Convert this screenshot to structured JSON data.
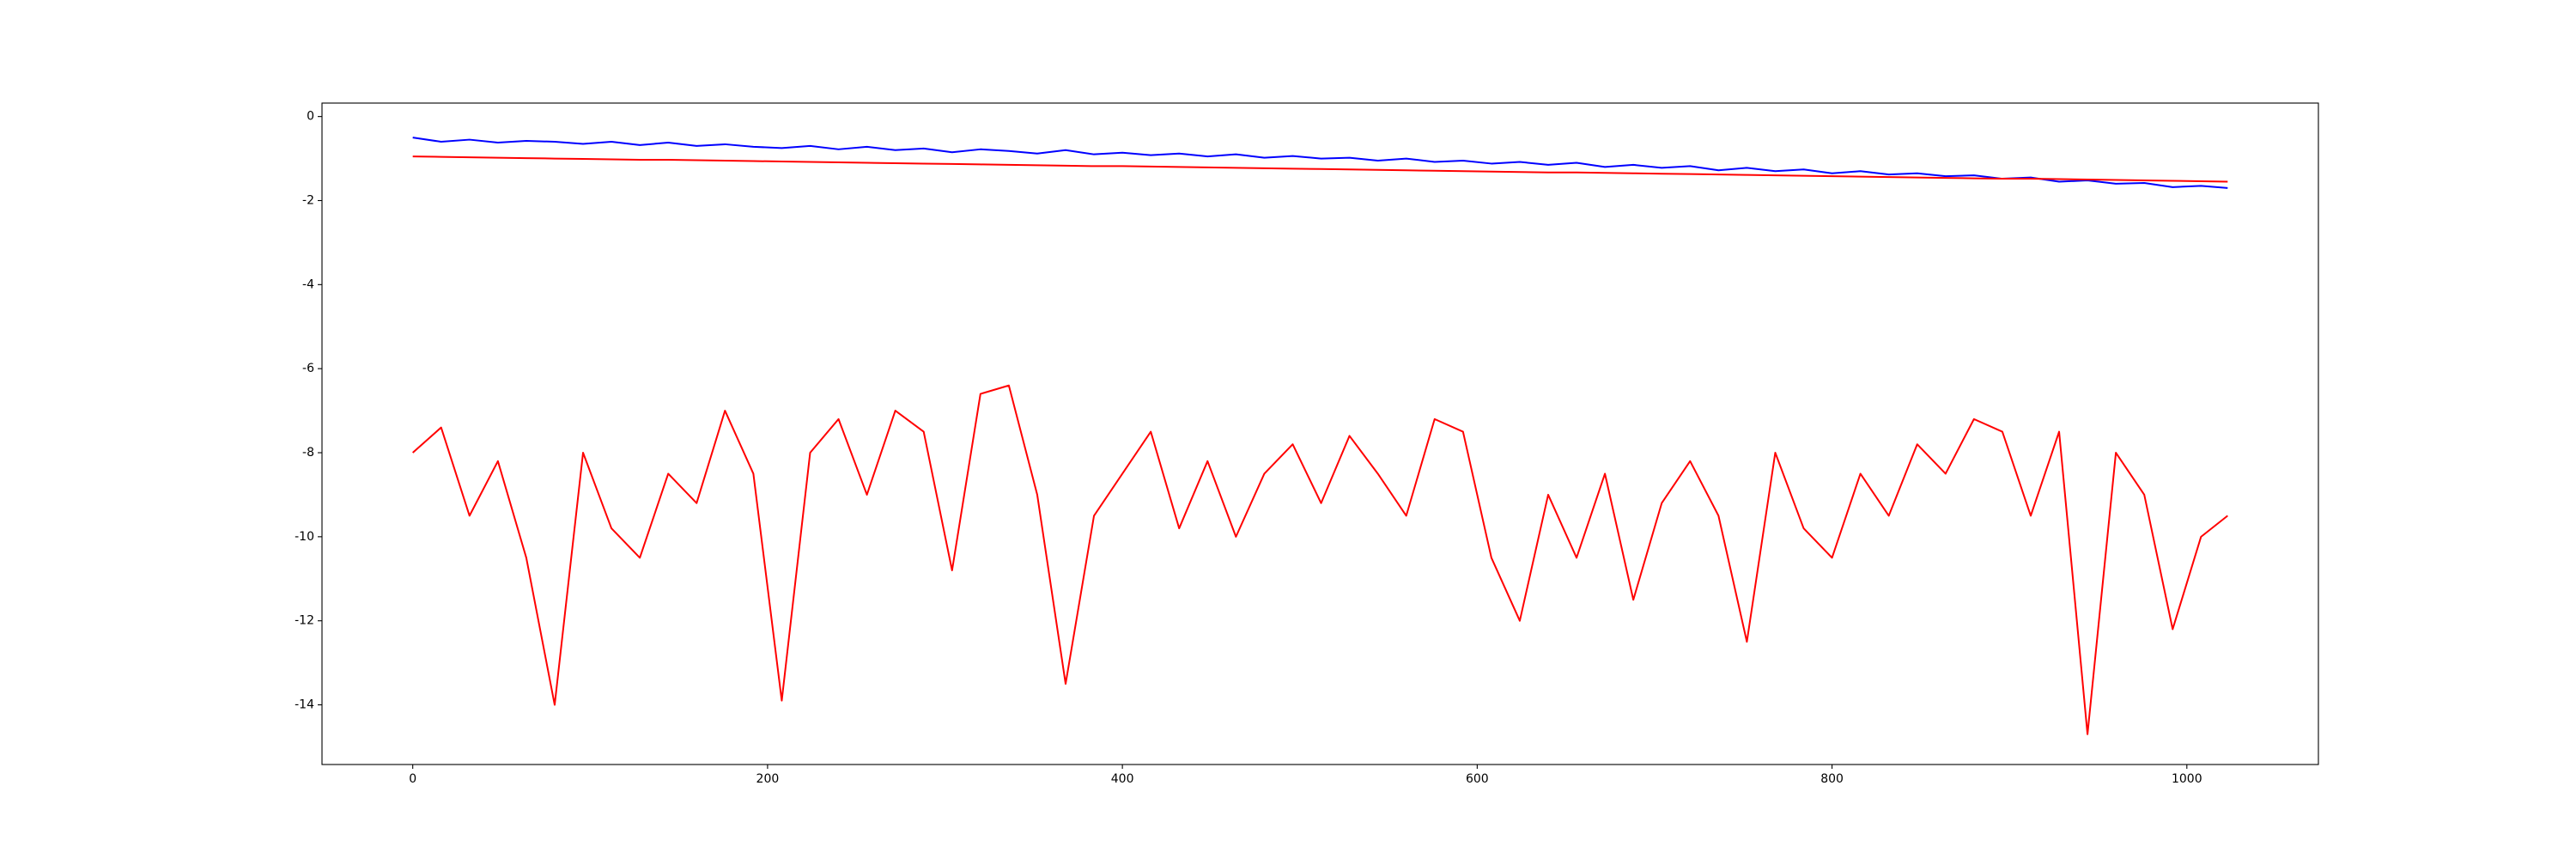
{
  "chart_data": {
    "type": "line",
    "x": [
      0,
      16,
      32,
      48,
      64,
      80,
      96,
      112,
      128,
      144,
      160,
      176,
      192,
      208,
      224,
      240,
      256,
      272,
      288,
      304,
      320,
      336,
      352,
      368,
      384,
      400,
      416,
      432,
      448,
      464,
      480,
      496,
      512,
      528,
      544,
      560,
      576,
      592,
      608,
      624,
      640,
      656,
      672,
      688,
      704,
      720,
      736,
      752,
      768,
      784,
      800,
      816,
      832,
      848,
      864,
      880,
      896,
      912,
      928,
      944,
      960,
      976,
      992,
      1008,
      1023
    ],
    "series": [
      {
        "color": "#0000ff",
        "values": [
          -0.5,
          -0.6,
          -0.55,
          -0.62,
          -0.58,
          -0.6,
          -0.65,
          -0.6,
          -0.68,
          -0.62,
          -0.7,
          -0.66,
          -0.72,
          -0.75,
          -0.7,
          -0.78,
          -0.72,
          -0.8,
          -0.76,
          -0.85,
          -0.78,
          -0.82,
          -0.88,
          -0.8,
          -0.9,
          -0.86,
          -0.92,
          -0.88,
          -0.95,
          -0.9,
          -0.98,
          -0.94,
          -1.0,
          -0.98,
          -1.05,
          -1.0,
          -1.08,
          -1.05,
          -1.12,
          -1.08,
          -1.15,
          -1.1,
          -1.2,
          -1.15,
          -1.22,
          -1.18,
          -1.28,
          -1.22,
          -1.3,
          -1.26,
          -1.35,
          -1.3,
          -1.38,
          -1.35,
          -1.42,
          -1.4,
          -1.48,
          -1.45,
          -1.55,
          -1.52,
          -1.6,
          -1.58,
          -1.68,
          -1.65,
          -1.7
        ]
      },
      {
        "color": "#ff0000",
        "values": [
          -0.95,
          -0.96,
          -0.97,
          -0.98,
          -0.99,
          -1.0,
          -1.01,
          -1.02,
          -1.03,
          -1.03,
          -1.04,
          -1.05,
          -1.06,
          -1.07,
          -1.08,
          -1.09,
          -1.1,
          -1.11,
          -1.12,
          -1.13,
          -1.14,
          -1.15,
          -1.16,
          -1.17,
          -1.18,
          -1.18,
          -1.19,
          -1.2,
          -1.21,
          -1.22,
          -1.23,
          -1.24,
          -1.25,
          -1.26,
          -1.27,
          -1.28,
          -1.29,
          -1.3,
          -1.31,
          -1.32,
          -1.33,
          -1.33,
          -1.34,
          -1.35,
          -1.36,
          -1.37,
          -1.38,
          -1.39,
          -1.4,
          -1.41,
          -1.42,
          -1.43,
          -1.44,
          -1.45,
          -1.46,
          -1.47,
          -1.48,
          -1.48,
          -1.49,
          -1.5,
          -1.51,
          -1.52,
          -1.53,
          -1.54,
          -1.55
        ]
      },
      {
        "color": "#ff0000",
        "values": [
          -8.0,
          -7.4,
          -9.5,
          -8.2,
          -10.5,
          -14.0,
          -8.0,
          -9.8,
          -10.5,
          -8.5,
          -9.2,
          -7.0,
          -8.5,
          -13.9,
          -8.0,
          -7.2,
          -9.0,
          -7.0,
          -7.5,
          -10.8,
          -6.6,
          -6.4,
          -9.0,
          -13.5,
          -9.5,
          -8.5,
          -7.5,
          -9.8,
          -8.2,
          -10.0,
          -8.5,
          -7.8,
          -9.2,
          -7.6,
          -8.5,
          -9.5,
          -7.2,
          -7.5,
          -10.5,
          -12.0,
          -9.0,
          -10.5,
          -8.5,
          -11.5,
          -9.2,
          -8.2,
          -9.5,
          -12.5,
          -8.0,
          -9.8,
          -10.5,
          -8.5,
          -9.5,
          -7.8,
          -8.5,
          -7.2,
          -7.5,
          -9.5,
          -7.5,
          -14.7,
          -8.0,
          -9.0,
          -12.2,
          -10.0,
          -9.5
        ]
      }
    ],
    "xlim": [
      -51.15,
      1074.15
    ],
    "xticks": [
      0,
      200,
      400,
      600,
      800,
      1000
    ],
    "ylim": [
      -15.42,
      0.32
    ],
    "yticks": [
      -14,
      -12,
      -10,
      -8,
      -6,
      -4,
      -2,
      0
    ],
    "grid": false
  }
}
